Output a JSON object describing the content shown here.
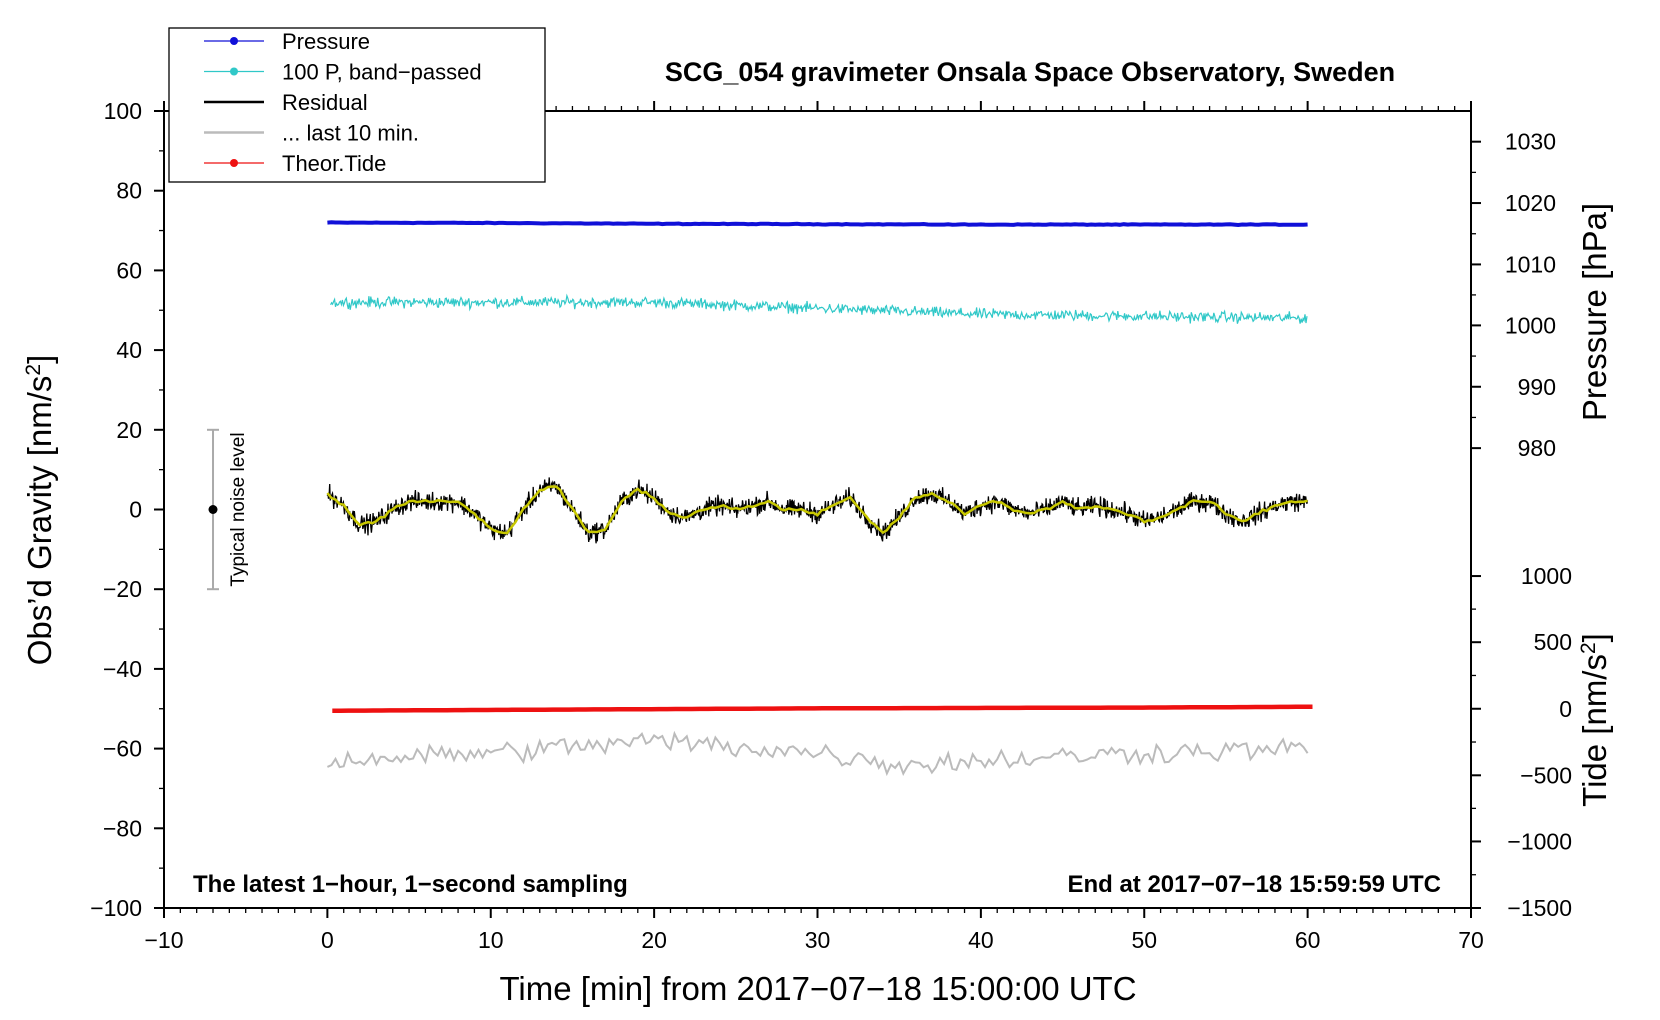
{
  "chart_data": {
    "type": "line",
    "title": "SCG_054 gravimeter Onsala Space Observatory, Sweden",
    "xlabel": "Time [min] from 2017−07−18 15:00:00 UTC",
    "ylabel_main": "Obs’d Gravity [nm/s",
    "ylabel_main_sup": "2",
    "ylabel_main_close": "]",
    "ylabel_pressure": "Pressure [hPa]",
    "ylabel_tide": "Tide [nm/s",
    "ylabel_tide_sup": "2",
    "ylabel_tide_close": "]",
    "xlim": [
      -10,
      70
    ],
    "ylim": [
      -100,
      100
    ],
    "x_ticks": [
      {
        "value": -10,
        "label": "−10"
      },
      {
        "value": 0,
        "label": "0"
      },
      {
        "value": 10,
        "label": "10"
      },
      {
        "value": 20,
        "label": "20"
      },
      {
        "value": 30,
        "label": "30"
      },
      {
        "value": 40,
        "label": "40"
      },
      {
        "value": 50,
        "label": "50"
      },
      {
        "value": 60,
        "label": "60"
      },
      {
        "value": 70,
        "label": "70"
      }
    ],
    "y_ticks": [
      {
        "value": 100,
        "label": "100"
      },
      {
        "value": 80,
        "label": "80"
      },
      {
        "value": 60,
        "label": "60"
      },
      {
        "value": 40,
        "label": "40"
      },
      {
        "value": 20,
        "label": "20"
      },
      {
        "value": 0,
        "label": "0"
      },
      {
        "value": -20,
        "label": "−20"
      },
      {
        "value": -40,
        "label": "−40"
      },
      {
        "value": -60,
        "label": "−60"
      },
      {
        "value": -80,
        "label": "−80"
      },
      {
        "value": -100,
        "label": "−100"
      }
    ],
    "pressure_axis": {
      "ticks": [
        {
          "value": 1030,
          "label": "1030",
          "gravity_equiv": 92.3
        },
        {
          "value": 1020,
          "label": "1020",
          "gravity_equiv": 76.9
        },
        {
          "value": 1010,
          "label": "1010",
          "gravity_equiv": 61.5
        },
        {
          "value": 1000,
          "label": "1000",
          "gravity_equiv": 46.2
        },
        {
          "value": 990,
          "label": "990",
          "gravity_equiv": 30.8
        },
        {
          "value": 980,
          "label": "980",
          "gravity_equiv": 15.4
        }
      ]
    },
    "tide_axis": {
      "ticks": [
        {
          "value": 1000,
          "label": "1000",
          "gravity_equiv": -16.7
        },
        {
          "value": 500,
          "label": "500",
          "gravity_equiv": -33.3
        },
        {
          "value": 0,
          "label": "0",
          "gravity_equiv": -50.0
        },
        {
          "value": -500,
          "label": "−500",
          "gravity_equiv": -66.7
        },
        {
          "value": -1000,
          "label": "−1000",
          "gravity_equiv": -83.3
        },
        {
          "value": -1500,
          "label": "−1500",
          "gravity_equiv": -100.0
        }
      ]
    },
    "series": [
      {
        "name": "Pressure",
        "color": "#1010d8",
        "style": "thick-line",
        "points": [
          [
            0,
            72.0
          ],
          [
            10,
            71.9
          ],
          [
            20,
            71.7
          ],
          [
            30,
            71.6
          ],
          [
            40,
            71.5
          ],
          [
            50,
            71.5
          ],
          [
            60,
            71.5
          ]
        ]
      },
      {
        "name": "100 P, band−passed",
        "color": "#30c8c8",
        "style": "noisy-thin",
        "baseline": [
          [
            0,
            52
          ],
          [
            10,
            52
          ],
          [
            20,
            52
          ],
          [
            30,
            50.5
          ],
          [
            40,
            49
          ],
          [
            50,
            48.5
          ],
          [
            60,
            48
          ]
        ],
        "noise_amplitude": 2.0
      },
      {
        "name": "Residual",
        "color": "#000000",
        "style": "noisy",
        "smooth": [
          [
            0,
            4
          ],
          [
            1,
            1
          ],
          [
            2,
            -4
          ],
          [
            3,
            -3
          ],
          [
            4,
            0
          ],
          [
            5,
            2
          ],
          [
            6,
            2
          ],
          [
            7,
            2
          ],
          [
            8,
            2
          ],
          [
            9,
            -1
          ],
          [
            10,
            -5
          ],
          [
            11,
            -6
          ],
          [
            12,
            0
          ],
          [
            13,
            5
          ],
          [
            14,
            6
          ],
          [
            15,
            0
          ],
          [
            16,
            -6
          ],
          [
            17,
            -5
          ],
          [
            18,
            2
          ],
          [
            19,
            5
          ],
          [
            20,
            3
          ],
          [
            21,
            -1
          ],
          [
            22,
            -2
          ],
          [
            23,
            0
          ],
          [
            24,
            1
          ],
          [
            25,
            0
          ],
          [
            26,
            1
          ],
          [
            27,
            2
          ],
          [
            28,
            0
          ],
          [
            29,
            0
          ],
          [
            30,
            -1
          ],
          [
            31,
            1
          ],
          [
            32,
            3
          ],
          [
            33,
            -2
          ],
          [
            34,
            -6
          ],
          [
            35,
            -2
          ],
          [
            36,
            3
          ],
          [
            37,
            4
          ],
          [
            38,
            2
          ],
          [
            39,
            -1
          ],
          [
            40,
            1
          ],
          [
            41,
            2
          ],
          [
            42,
            0
          ],
          [
            43,
            -1
          ],
          [
            44,
            0
          ],
          [
            45,
            2
          ],
          [
            46,
            0
          ],
          [
            47,
            1
          ],
          [
            48,
            0
          ],
          [
            49,
            -1
          ],
          [
            50,
            -3
          ],
          [
            51,
            -2
          ],
          [
            52,
            0
          ],
          [
            53,
            2
          ],
          [
            54,
            2
          ],
          [
            55,
            -1
          ],
          [
            56,
            -3
          ],
          [
            57,
            -1
          ],
          [
            58,
            1
          ],
          [
            59,
            2
          ],
          [
            60,
            2
          ]
        ],
        "noise_amplitude": 3.5
      },
      {
        "name": "... last 10 min.",
        "color": "#bbbbbb",
        "style": "noisy-thin",
        "baseline": [
          [
            0,
            -63
          ],
          [
            10,
            -61
          ],
          [
            20,
            -58
          ],
          [
            30,
            -61
          ],
          [
            35,
            -64
          ],
          [
            40,
            -63
          ],
          [
            50,
            -61
          ],
          [
            60,
            -60
          ]
        ],
        "noise_amplitude": 4.0
      },
      {
        "name": "Theor.Tide",
        "color": "#ee1111",
        "style": "thick-line",
        "points": [
          [
            0,
            -50.5
          ],
          [
            10,
            -50.3
          ],
          [
            20,
            -50.1
          ],
          [
            30,
            -49.9
          ],
          [
            40,
            -49.8
          ],
          [
            50,
            -49.7
          ],
          [
            60.5,
            -49.5
          ]
        ]
      }
    ],
    "smoothed_residual_color": "#c8c800",
    "noise_bar": {
      "x": -7,
      "y": 0,
      "low": -20,
      "high": 20,
      "label": "Typical noise level"
    },
    "legend": [
      {
        "label": "Pressure",
        "color": "#1010d8",
        "marker": true
      },
      {
        "label": "100 P, band−passed",
        "color": "#30c8c8",
        "marker": true
      },
      {
        "label": "Residual",
        "color": "#000000",
        "marker": false
      },
      {
        "label": "... last 10 min.",
        "color": "#bbbbbb",
        "marker": false
      },
      {
        "label": "Theor.Tide",
        "color": "#ee1111",
        "marker": true
      }
    ],
    "legend_position": "top-left",
    "annotations": {
      "left": "The latest 1−hour, 1−second sampling",
      "right": "End at 2017−07−18 15:59:59 UTC"
    }
  }
}
